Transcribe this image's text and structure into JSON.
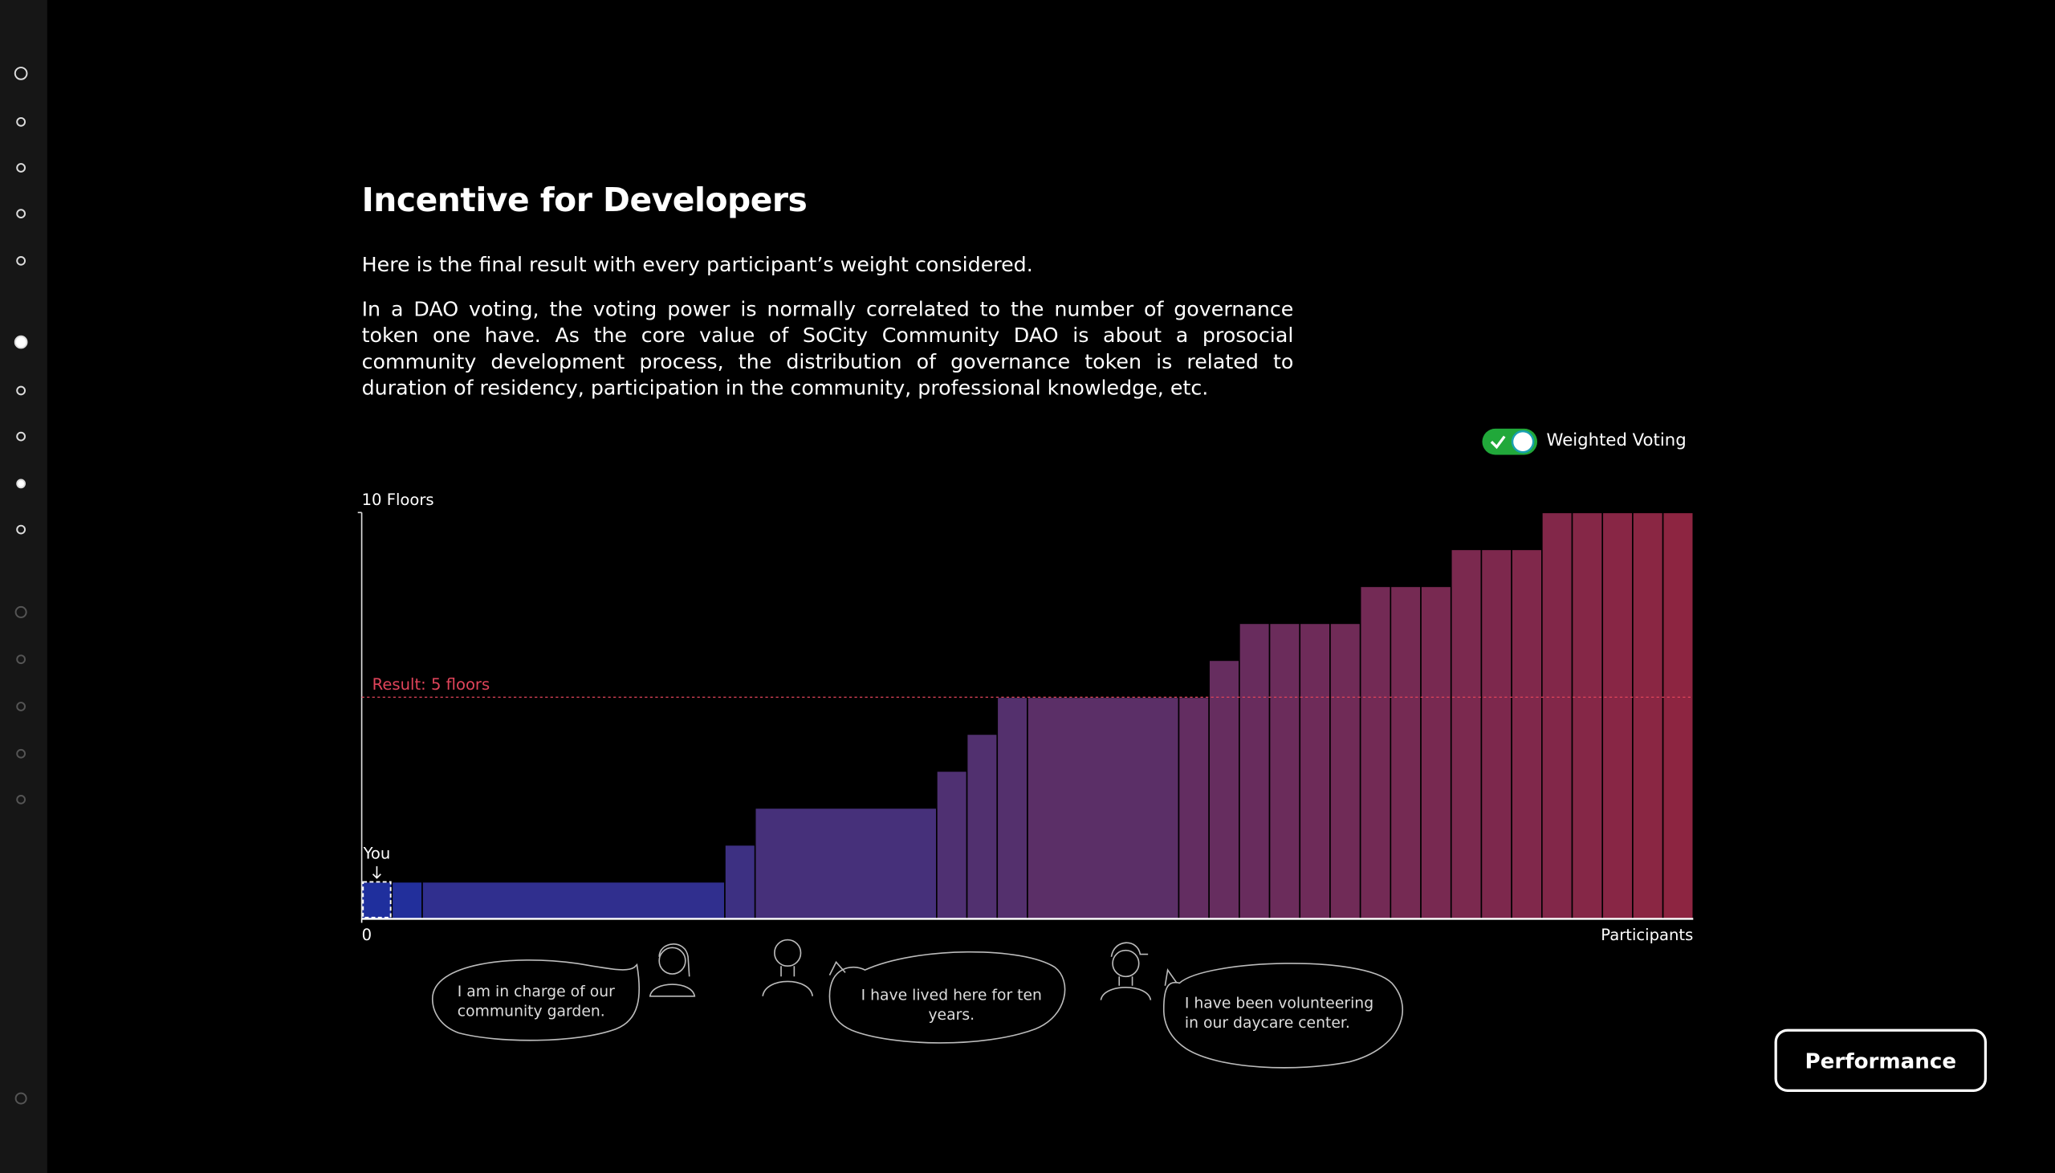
{
  "title": "Incentive for Developers",
  "paragraphs": [
    "Here is the final result with every participant’s weight considered.",
    "In a DAO voting, the voting power is normally correlated to the number of governance token one have. As the core value of SoCity Community DAO is about a prosocial community development process, the distribution of governance token is related to duration of residency, participation in the community, professional knowledge, etc."
  ],
  "toggle": {
    "label": "Weighted Voting",
    "on": true
  },
  "chart_data": {
    "type": "histogram",
    "bins": [
      0,
      1,
      2,
      12,
      13,
      19,
      20,
      21,
      22,
      27,
      28,
      29,
      30,
      31,
      32,
      33,
      34,
      35,
      36,
      37,
      38,
      39,
      40,
      41,
      42,
      43,
      44
    ],
    "values": [
      0,
      0,
      0,
      1,
      2,
      3,
      4,
      5,
      5,
      5,
      6,
      7,
      7,
      7,
      7,
      8,
      8,
      8,
      9,
      9,
      9,
      10,
      10,
      10,
      10,
      10
    ],
    "colors": [
      "#1e2f9e",
      "#55306c",
      "#8e2540"
    ],
    "xlim": [
      0,
      44
    ],
    "xticks": [
      0
    ],
    "xlabel": "Participants",
    "ylim": [
      -1,
      10
    ],
    "yticks": [
      {
        "value": 10,
        "label": "10 Floors"
      }
    ],
    "result": {
      "label": "Result: 5 floors",
      "value": 5,
      "color": "#e0445a"
    },
    "marker_label": "You"
  },
  "quotes": [
    "I am in charge of our community garden.",
    "I have lived here for ten years.",
    "I have been volunteering in our daycare center."
  ],
  "button": "Performance"
}
